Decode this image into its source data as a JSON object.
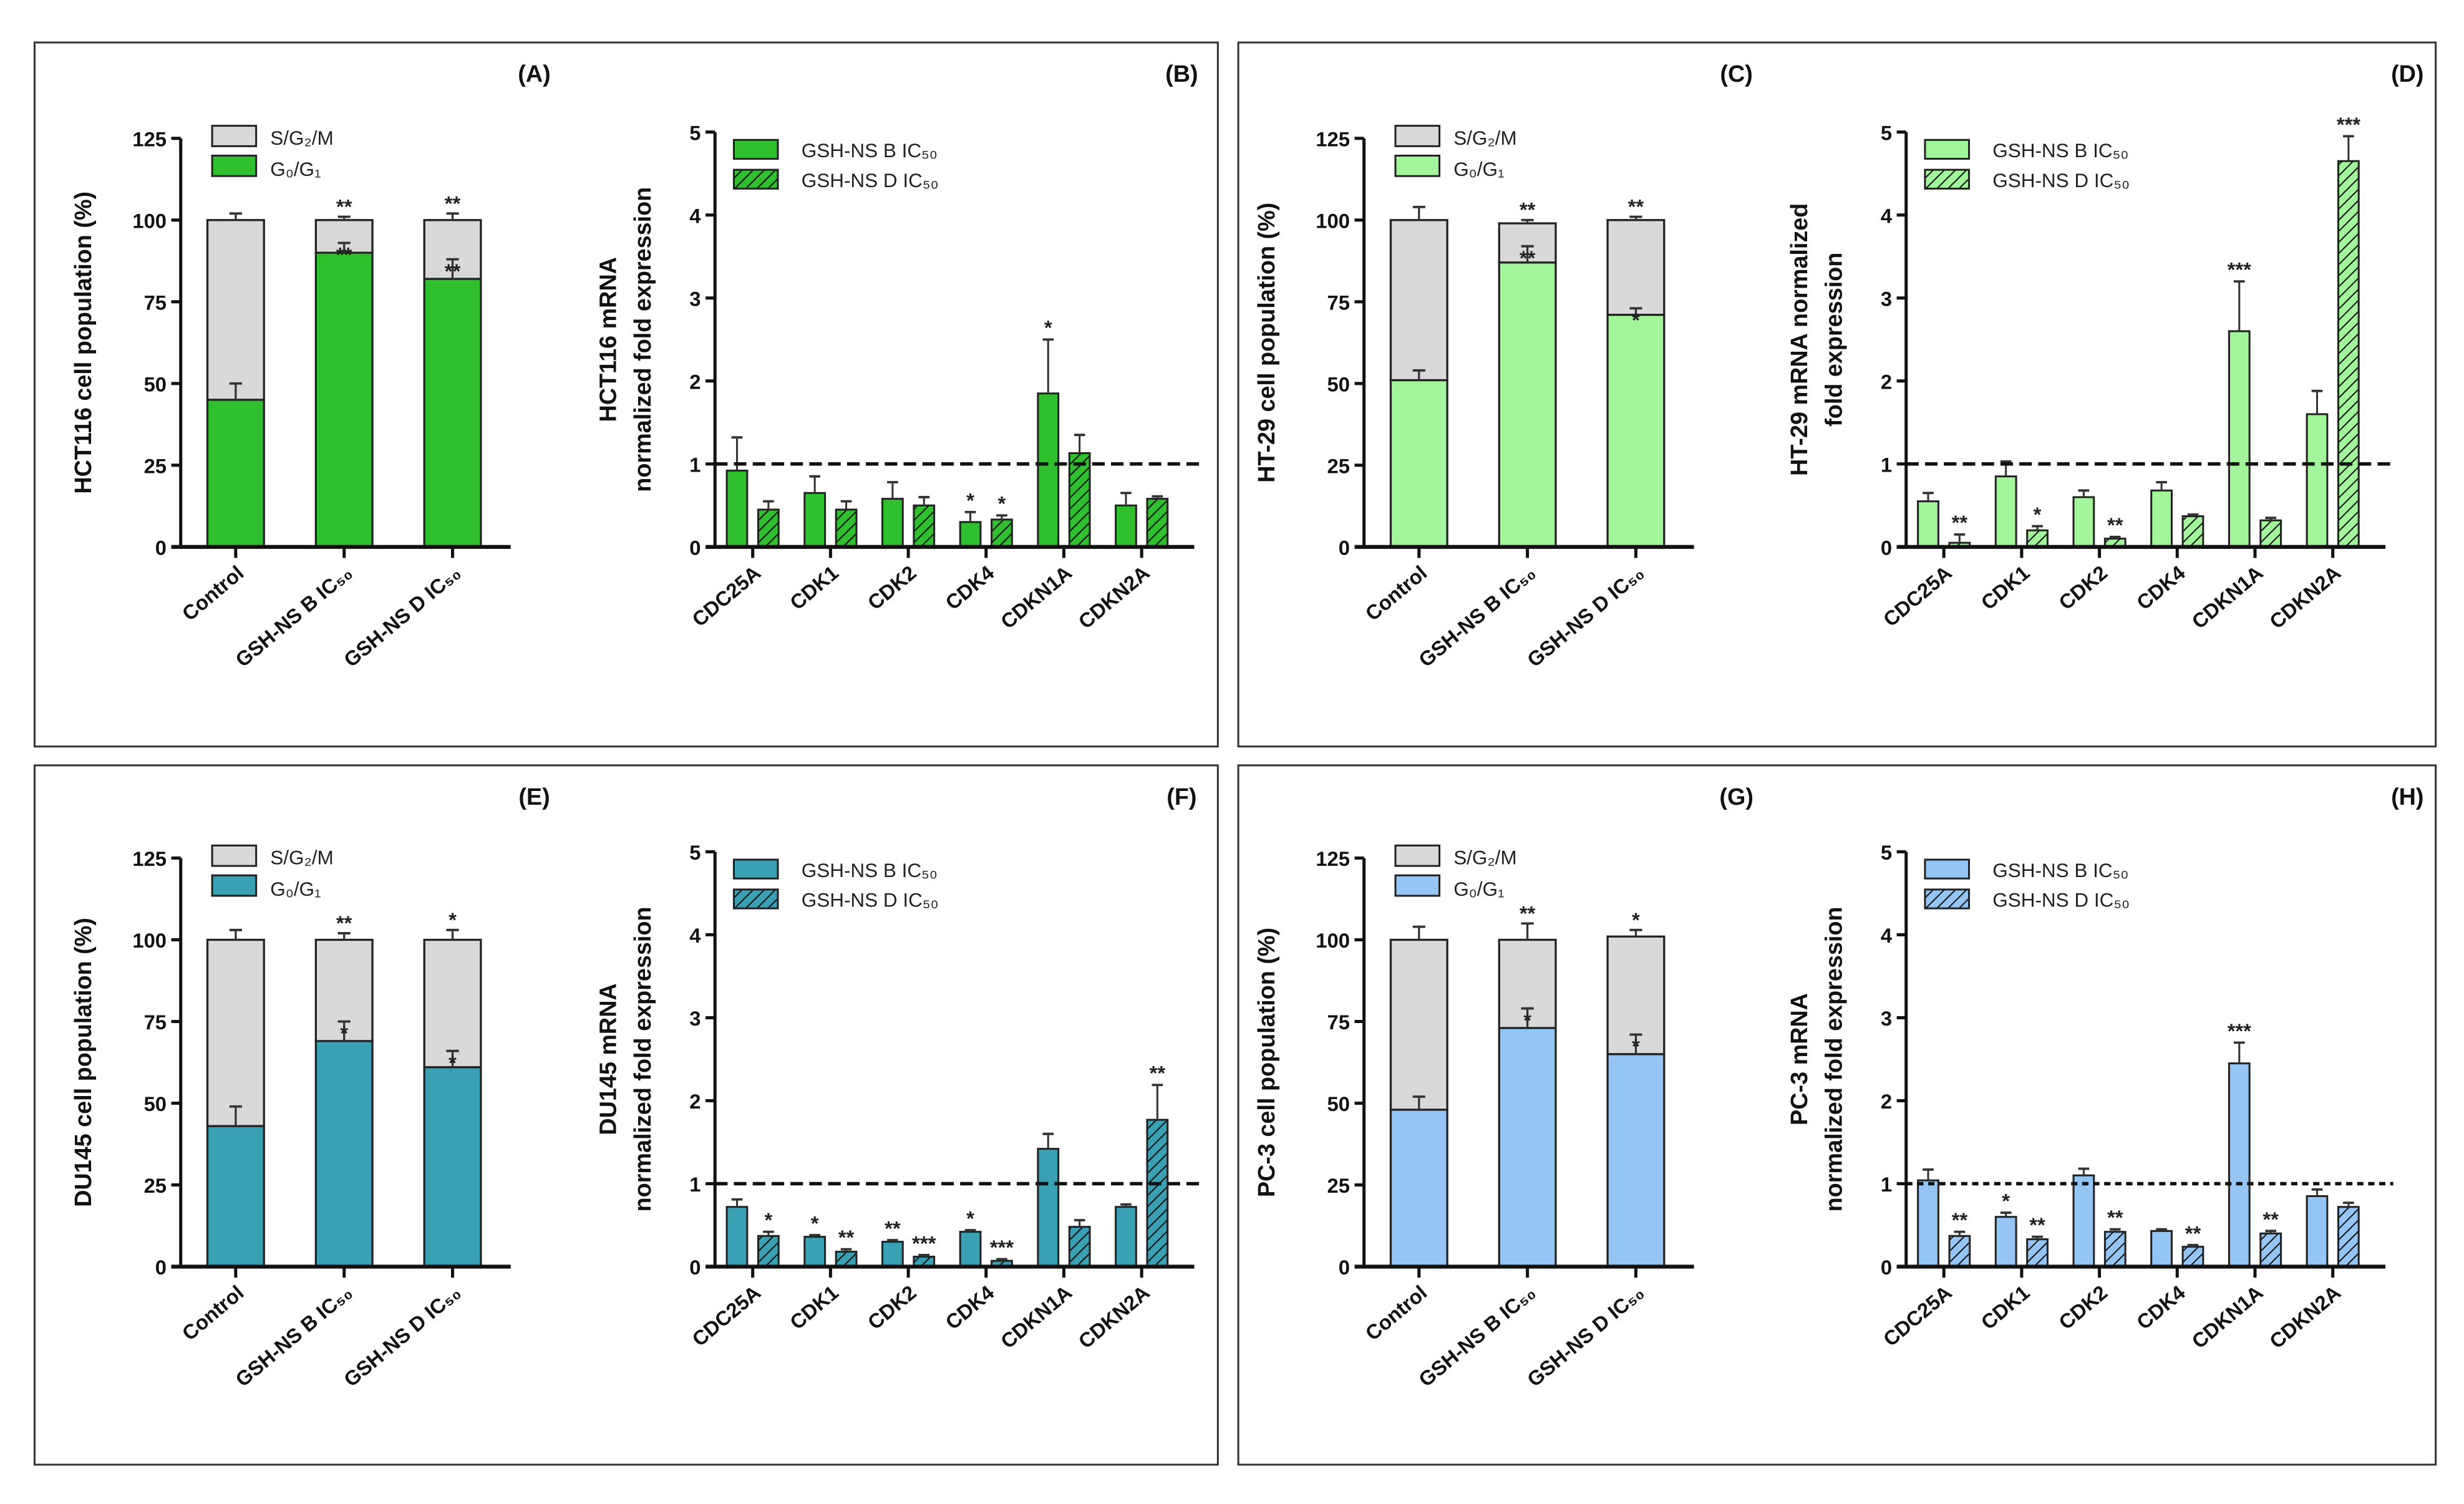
{
  "colors": {
    "hct116": "#2fbf2f",
    "ht29": "#a3f59c",
    "du145": "#3aa0b4",
    "pc3": "#94c5f5",
    "s_g2_m": "#d9d9d9"
  },
  "chart_data": [
    {
      "panel": "(A)",
      "type": "bar",
      "stacked": true,
      "color": "#2fbf2f",
      "ylabel": "HCT116 cell population (%)",
      "ylim": [
        0,
        125
      ],
      "yticks": [
        "0",
        "25",
        "50",
        "75",
        "100",
        "125"
      ],
      "categories": [
        "Control",
        "GSH-NS B IC₅₀",
        "GSH-NS D IC₅₀"
      ],
      "legend": [
        "S/G₂/M",
        "G₀/G₁"
      ],
      "g0_g1": [
        45,
        90,
        82
      ],
      "g0_g1_err": [
        5,
        3,
        6
      ],
      "total": [
        100,
        100,
        100
      ],
      "total_err": [
        2,
        1,
        2
      ],
      "annot_total": [
        "",
        "**",
        "**"
      ],
      "annot_g0": [
        "",
        "**",
        "**"
      ]
    },
    {
      "panel": "(B)",
      "type": "bar",
      "stacked": false,
      "color": "#2fbf2f",
      "ylabel": [
        "HCT116 mRNA",
        "normalized fold expression"
      ],
      "ylim": [
        0,
        5
      ],
      "yticks": [
        "0",
        "1",
        "2",
        "3",
        "4",
        "5"
      ],
      "reference_line": 1,
      "categories": [
        "CDC25A",
        "CDK1",
        "CDK2",
        "CDK4",
        "CDKN1A",
        "CDKN2A"
      ],
      "series": [
        {
          "name": "GSH-NS B IC₅₀",
          "values": [
            0.92,
            0.65,
            0.58,
            0.3,
            1.85,
            0.5
          ],
          "err": [
            0.4,
            0.2,
            0.2,
            0.12,
            0.65,
            0.15
          ],
          "sig": [
            "",
            "",
            "",
            "*",
            "*",
            ""
          ]
        },
        {
          "name": "GSH-NS D IC₅₀",
          "values": [
            0.45,
            0.45,
            0.5,
            0.33,
            1.13,
            0.58
          ],
          "err": [
            0.1,
            0.1,
            0.1,
            0.05,
            0.22,
            0.03
          ],
          "sig": [
            "",
            "",
            "",
            "*",
            "",
            ""
          ]
        }
      ]
    },
    {
      "panel": "(C)",
      "type": "bar",
      "stacked": true,
      "color": "#a3f59c",
      "ylabel": "HT-29 cell population (%)",
      "ylim": [
        0,
        125
      ],
      "yticks": [
        "0",
        "25",
        "50",
        "75",
        "100",
        "125"
      ],
      "categories": [
        "Control",
        "GSH-NS B IC₅₀",
        "GSH-NS D IC₅₀"
      ],
      "legend": [
        "S/G₂/M",
        "G₀/G₁"
      ],
      "g0_g1": [
        51,
        87,
        71
      ],
      "g0_g1_err": [
        3,
        5,
        2
      ],
      "total": [
        100,
        99,
        100
      ],
      "total_err": [
        4,
        1,
        1
      ],
      "annot_total": [
        "",
        "**",
        "**"
      ],
      "annot_g0": [
        "",
        "**",
        "*"
      ]
    },
    {
      "panel": "(D)",
      "type": "bar",
      "stacked": false,
      "color": "#a3f59c",
      "ylabel": [
        "HT-29 mRNA normalized",
        "fold expression"
      ],
      "ylim": [
        0,
        5
      ],
      "yticks": [
        "0",
        "1",
        "2",
        "3",
        "4",
        "5"
      ],
      "reference_line": 1,
      "categories": [
        "CDC25A",
        "CDK1",
        "CDK2",
        "CDK4",
        "CDKN1A",
        "CDKN2A"
      ],
      "series": [
        {
          "name": "GSH-NS B IC₅₀",
          "values": [
            0.55,
            0.85,
            0.6,
            0.68,
            2.6,
            1.6
          ],
          "err": [
            0.1,
            0.18,
            0.08,
            0.1,
            0.6,
            0.28
          ],
          "sig": [
            "",
            "",
            "",
            "",
            "***",
            ""
          ]
        },
        {
          "name": "GSH-NS D IC₅₀",
          "values": [
            0.05,
            0.2,
            0.1,
            0.37,
            0.32,
            4.65
          ],
          "err": [
            0.1,
            0.05,
            0.02,
            0.02,
            0.03,
            0.3
          ],
          "sig": [
            "**",
            "*",
            "**",
            "",
            "",
            "***"
          ]
        }
      ]
    },
    {
      "panel": "(E)",
      "type": "bar",
      "stacked": true,
      "color": "#3aa0b4",
      "ylabel": "DU145 cell population (%)",
      "ylim": [
        0,
        125
      ],
      "yticks": [
        "0",
        "25",
        "50",
        "75",
        "100",
        "125"
      ],
      "categories": [
        "Control",
        "GSH-NS B IC₅₀",
        "GSH-NS D IC₅₀"
      ],
      "legend": [
        "S/G₂/M",
        "G₀/G₁"
      ],
      "g0_g1": [
        43,
        69,
        61
      ],
      "g0_g1_err": [
        6,
        6,
        5
      ],
      "total": [
        100,
        100,
        100
      ],
      "total_err": [
        3,
        2,
        3
      ],
      "annot_total": [
        "",
        "**",
        "*"
      ],
      "annot_g0": [
        "",
        "*",
        "*"
      ]
    },
    {
      "panel": "(F)",
      "type": "bar",
      "stacked": false,
      "color": "#3aa0b4",
      "ylabel": [
        "DU145 mRNA",
        "normalized fold expression"
      ],
      "ylim": [
        0,
        5
      ],
      "yticks": [
        "0",
        "1",
        "2",
        "3",
        "4",
        "5"
      ],
      "reference_line": 1,
      "categories": [
        "CDC25A",
        "CDK1",
        "CDK2",
        "CDK4",
        "CDKN1A",
        "CDKN2A"
      ],
      "series": [
        {
          "name": "GSH-NS B IC₅₀",
          "values": [
            0.72,
            0.36,
            0.3,
            0.42,
            1.42,
            0.72
          ],
          "err": [
            0.09,
            0.02,
            0.02,
            0.02,
            0.18,
            0.03
          ],
          "sig": [
            "",
            "*",
            "**",
            "*",
            "",
            ""
          ]
        },
        {
          "name": "GSH-NS D IC₅₀",
          "values": [
            0.37,
            0.18,
            0.12,
            0.07,
            0.48,
            1.77
          ],
          "err": [
            0.05,
            0.03,
            0.02,
            0.02,
            0.08,
            0.42
          ],
          "sig": [
            "*",
            "**",
            "***",
            "***",
            "",
            "**"
          ]
        }
      ]
    },
    {
      "panel": "(G)",
      "type": "bar",
      "stacked": true,
      "color": "#94c5f5",
      "ylabel": "PC-3 cell population (%)",
      "ylim": [
        0,
        125
      ],
      "yticks": [
        "0",
        "25",
        "50",
        "75",
        "100",
        "125"
      ],
      "categories": [
        "Control",
        "GSH-NS B IC₅₀",
        "GSH-NS D IC₅₀"
      ],
      "legend": [
        "S/G₂/M",
        "G₀/G₁"
      ],
      "g0_g1": [
        48,
        73,
        65
      ],
      "g0_g1_err": [
        4,
        6,
        6
      ],
      "total": [
        100,
        100,
        101
      ],
      "total_err": [
        4,
        5,
        2
      ],
      "annot_total": [
        "",
        "**",
        "*"
      ],
      "annot_g0": [
        "",
        "*",
        "*"
      ]
    },
    {
      "panel": "(H)",
      "type": "bar",
      "stacked": false,
      "color": "#94c5f5",
      "ylabel": [
        "PC-3 mRNA",
        "normalized fold expression"
      ],
      "ylim": [
        0,
        5
      ],
      "yticks": [
        "0",
        "1",
        "2",
        "3",
        "4",
        "5"
      ],
      "reference_line": 1,
      "categories": [
        "CDC25A",
        "CDK1",
        "CDK2",
        "CDK4",
        "CDKN1A",
        "CDKN2A"
      ],
      "series": [
        {
          "name": "GSH-NS B IC₅₀",
          "values": [
            1.04,
            0.6,
            1.1,
            0.43,
            2.45,
            0.85
          ],
          "err": [
            0.13,
            0.05,
            0.08,
            0.02,
            0.25,
            0.08
          ],
          "sig": [
            "",
            "*",
            "",
            "",
            "***",
            ""
          ]
        },
        {
          "name": "GSH-NS D IC₅₀",
          "values": [
            0.37,
            0.33,
            0.42,
            0.24,
            0.4,
            0.72
          ],
          "err": [
            0.05,
            0.03,
            0.03,
            0.02,
            0.03,
            0.05
          ],
          "sig": [
            "**",
            "**",
            "**",
            "**",
            "**",
            ""
          ]
        }
      ]
    }
  ]
}
